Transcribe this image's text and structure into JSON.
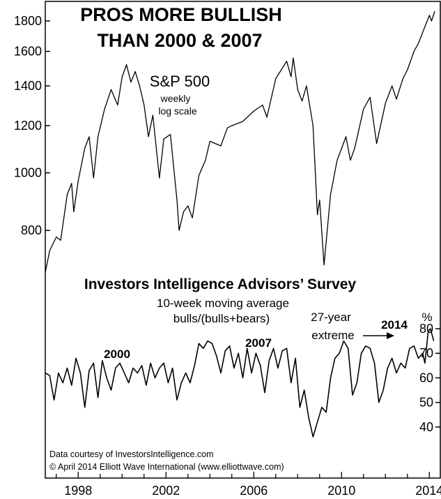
{
  "chart_data": [
    {
      "type": "line",
      "title": "PROS MORE BULLISH THAN 2000 & 2007",
      "title_lines": [
        "PROS MORE BULLISH",
        "THAN 2000 & 2007"
      ],
      "series_label": "S&P 500",
      "subtitle_lines": [
        "weekly",
        "log scale"
      ],
      "scale": "log",
      "ylim": [
        690,
        1900
      ],
      "xlim": [
        1996.5,
        2014.5
      ],
      "y_ticks": [
        800,
        1000,
        1200,
        1400,
        1600,
        1800
      ],
      "y_tick_labels": [
        "800",
        "1000",
        "1200",
        "1400",
        "1600",
        "1800"
      ],
      "color": "#000000",
      "points": [
        [
          1996.5,
          680
        ],
        [
          1996.7,
          740
        ],
        [
          1997.0,
          780
        ],
        [
          1997.2,
          770
        ],
        [
          1997.5,
          920
        ],
        [
          1997.7,
          960
        ],
        [
          1997.8,
          860
        ],
        [
          1998.0,
          970
        ],
        [
          1998.3,
          1100
        ],
        [
          1998.5,
          1150
        ],
        [
          1998.7,
          980
        ],
        [
          1998.9,
          1150
        ],
        [
          1999.2,
          1280
        ],
        [
          1999.5,
          1380
        ],
        [
          1999.8,
          1300
        ],
        [
          2000.0,
          1450
        ],
        [
          2000.2,
          1520
        ],
        [
          2000.4,
          1420
        ],
        [
          2000.6,
          1480
        ],
        [
          2000.8,
          1400
        ],
        [
          2001.0,
          1300
        ],
        [
          2001.2,
          1150
        ],
        [
          2001.4,
          1250
        ],
        [
          2001.7,
          980
        ],
        [
          2001.9,
          1140
        ],
        [
          2002.2,
          1160
        ],
        [
          2002.5,
          900
        ],
        [
          2002.6,
          800
        ],
        [
          2002.8,
          860
        ],
        [
          2003.0,
          880
        ],
        [
          2003.2,
          840
        ],
        [
          2003.5,
          990
        ],
        [
          2003.8,
          1050
        ],
        [
          2004.0,
          1130
        ],
        [
          2004.5,
          1110
        ],
        [
          2004.8,
          1190
        ],
        [
          2005.0,
          1200
        ],
        [
          2005.5,
          1220
        ],
        [
          2006.0,
          1270
        ],
        [
          2006.4,
          1300
        ],
        [
          2006.6,
          1240
        ],
        [
          2007.0,
          1440
        ],
        [
          2007.5,
          1540
        ],
        [
          2007.7,
          1450
        ],
        [
          2007.8,
          1560
        ],
        [
          2008.0,
          1380
        ],
        [
          2008.2,
          1320
        ],
        [
          2008.4,
          1400
        ],
        [
          2008.7,
          1200
        ],
        [
          2008.9,
          850
        ],
        [
          2009.0,
          900
        ],
        [
          2009.2,
          700
        ],
        [
          2009.5,
          920
        ],
        [
          2009.8,
          1050
        ],
        [
          2010.2,
          1150
        ],
        [
          2010.4,
          1050
        ],
        [
          2010.6,
          1100
        ],
        [
          2011.0,
          1280
        ],
        [
          2011.3,
          1340
        ],
        [
          2011.6,
          1120
        ],
        [
          2012.0,
          1310
        ],
        [
          2012.3,
          1400
        ],
        [
          2012.5,
          1330
        ],
        [
          2012.8,
          1440
        ],
        [
          2013.0,
          1490
        ],
        [
          2013.3,
          1600
        ],
        [
          2013.5,
          1650
        ],
        [
          2013.8,
          1760
        ],
        [
          2014.0,
          1840
        ],
        [
          2014.1,
          1800
        ],
        [
          2014.25,
          1870
        ]
      ],
      "x_ticks": [
        1998,
        2002,
        2006,
        2010,
        2014
      ],
      "x_tick_labels": [
        "1998",
        "2002",
        "2006",
        "2010",
        "2014"
      ]
    },
    {
      "type": "line",
      "title": "Investors Intelligence Advisors’ Survey",
      "subtitle_lines": [
        "10-week moving average",
        "bulls/(bulls+bears)"
      ],
      "ylabel": "%",
      "ylim": [
        32,
        82
      ],
      "xlim": [
        1996.5,
        2014.5
      ],
      "y_ticks": [
        40,
        50,
        60,
        70,
        80
      ],
      "y_tick_labels": [
        "40",
        "50",
        "60",
        "70",
        "80"
      ],
      "color": "#000000",
      "annotations": [
        {
          "text": "2000",
          "x": 2000.0,
          "y": 70
        },
        {
          "text": "2007",
          "x": 2007.0,
          "y": 72
        },
        {
          "lines": [
            "27-year",
            "extreme"
          ],
          "arrow_to": [
            2013.9,
            80
          ]
        },
        {
          "text": "2014",
          "x": 2014.0,
          "y": 82
        }
      ],
      "points": [
        [
          1996.5,
          62
        ],
        [
          1996.7,
          61
        ],
        [
          1996.9,
          51
        ],
        [
          1997.1,
          62
        ],
        [
          1997.3,
          58
        ],
        [
          1997.5,
          64
        ],
        [
          1997.7,
          57
        ],
        [
          1997.9,
          68
        ],
        [
          1998.1,
          62
        ],
        [
          1998.3,
          48
        ],
        [
          1998.5,
          63
        ],
        [
          1998.7,
          66
        ],
        [
          1998.9,
          52
        ],
        [
          1999.1,
          67
        ],
        [
          1999.3,
          60
        ],
        [
          1999.5,
          55
        ],
        [
          1999.7,
          64
        ],
        [
          1999.9,
          66
        ],
        [
          2000.1,
          62
        ],
        [
          2000.3,
          58
        ],
        [
          2000.5,
          64
        ],
        [
          2000.7,
          62
        ],
        [
          2000.9,
          65
        ],
        [
          2001.1,
          57
        ],
        [
          2001.3,
          66
        ],
        [
          2001.5,
          60
        ],
        [
          2001.7,
          64
        ],
        [
          2001.9,
          66
        ],
        [
          2002.1,
          58
        ],
        [
          2002.3,
          64
        ],
        [
          2002.5,
          51
        ],
        [
          2002.7,
          58
        ],
        [
          2002.9,
          62
        ],
        [
          2003.1,
          58
        ],
        [
          2003.3,
          65
        ],
        [
          2003.5,
          74
        ],
        [
          2003.7,
          72
        ],
        [
          2003.9,
          75
        ],
        [
          2004.1,
          74
        ],
        [
          2004.3,
          69
        ],
        [
          2004.5,
          62
        ],
        [
          2004.7,
          71
        ],
        [
          2004.9,
          73
        ],
        [
          2005.1,
          64
        ],
        [
          2005.3,
          70
        ],
        [
          2005.5,
          60
        ],
        [
          2005.7,
          72
        ],
        [
          2005.9,
          62
        ],
        [
          2006.1,
          70
        ],
        [
          2006.3,
          65
        ],
        [
          2006.5,
          54
        ],
        [
          2006.7,
          67
        ],
        [
          2006.9,
          72
        ],
        [
          2007.1,
          64
        ],
        [
          2007.3,
          71
        ],
        [
          2007.5,
          72
        ],
        [
          2007.7,
          58
        ],
        [
          2007.9,
          68
        ],
        [
          2008.1,
          48
        ],
        [
          2008.3,
          55
        ],
        [
          2008.5,
          44
        ],
        [
          2008.7,
          36
        ],
        [
          2008.9,
          42
        ],
        [
          2009.1,
          48
        ],
        [
          2009.3,
          46
        ],
        [
          2009.5,
          60
        ],
        [
          2009.7,
          68
        ],
        [
          2009.9,
          70
        ],
        [
          2010.1,
          75
        ],
        [
          2010.3,
          72
        ],
        [
          2010.5,
          53
        ],
        [
          2010.7,
          58
        ],
        [
          2010.9,
          70
        ],
        [
          2011.1,
          73
        ],
        [
          2011.3,
          72
        ],
        [
          2011.5,
          66
        ],
        [
          2011.7,
          50
        ],
        [
          2011.9,
          55
        ],
        [
          2012.1,
          64
        ],
        [
          2012.3,
          68
        ],
        [
          2012.5,
          62
        ],
        [
          2012.7,
          66
        ],
        [
          2012.9,
          64
        ],
        [
          2013.1,
          72
        ],
        [
          2013.3,
          73
        ],
        [
          2013.5,
          68
        ],
        [
          2013.7,
          70
        ],
        [
          2013.8,
          66
        ],
        [
          2013.95,
          79
        ],
        [
          2014.05,
          80
        ],
        [
          2014.2,
          75
        ]
      ]
    }
  ],
  "credits": [
    "Data courtesy of InvestorsIntelligence.com",
    "© April 2014 Elliott Wave International (www.elliottwave.com)"
  ]
}
